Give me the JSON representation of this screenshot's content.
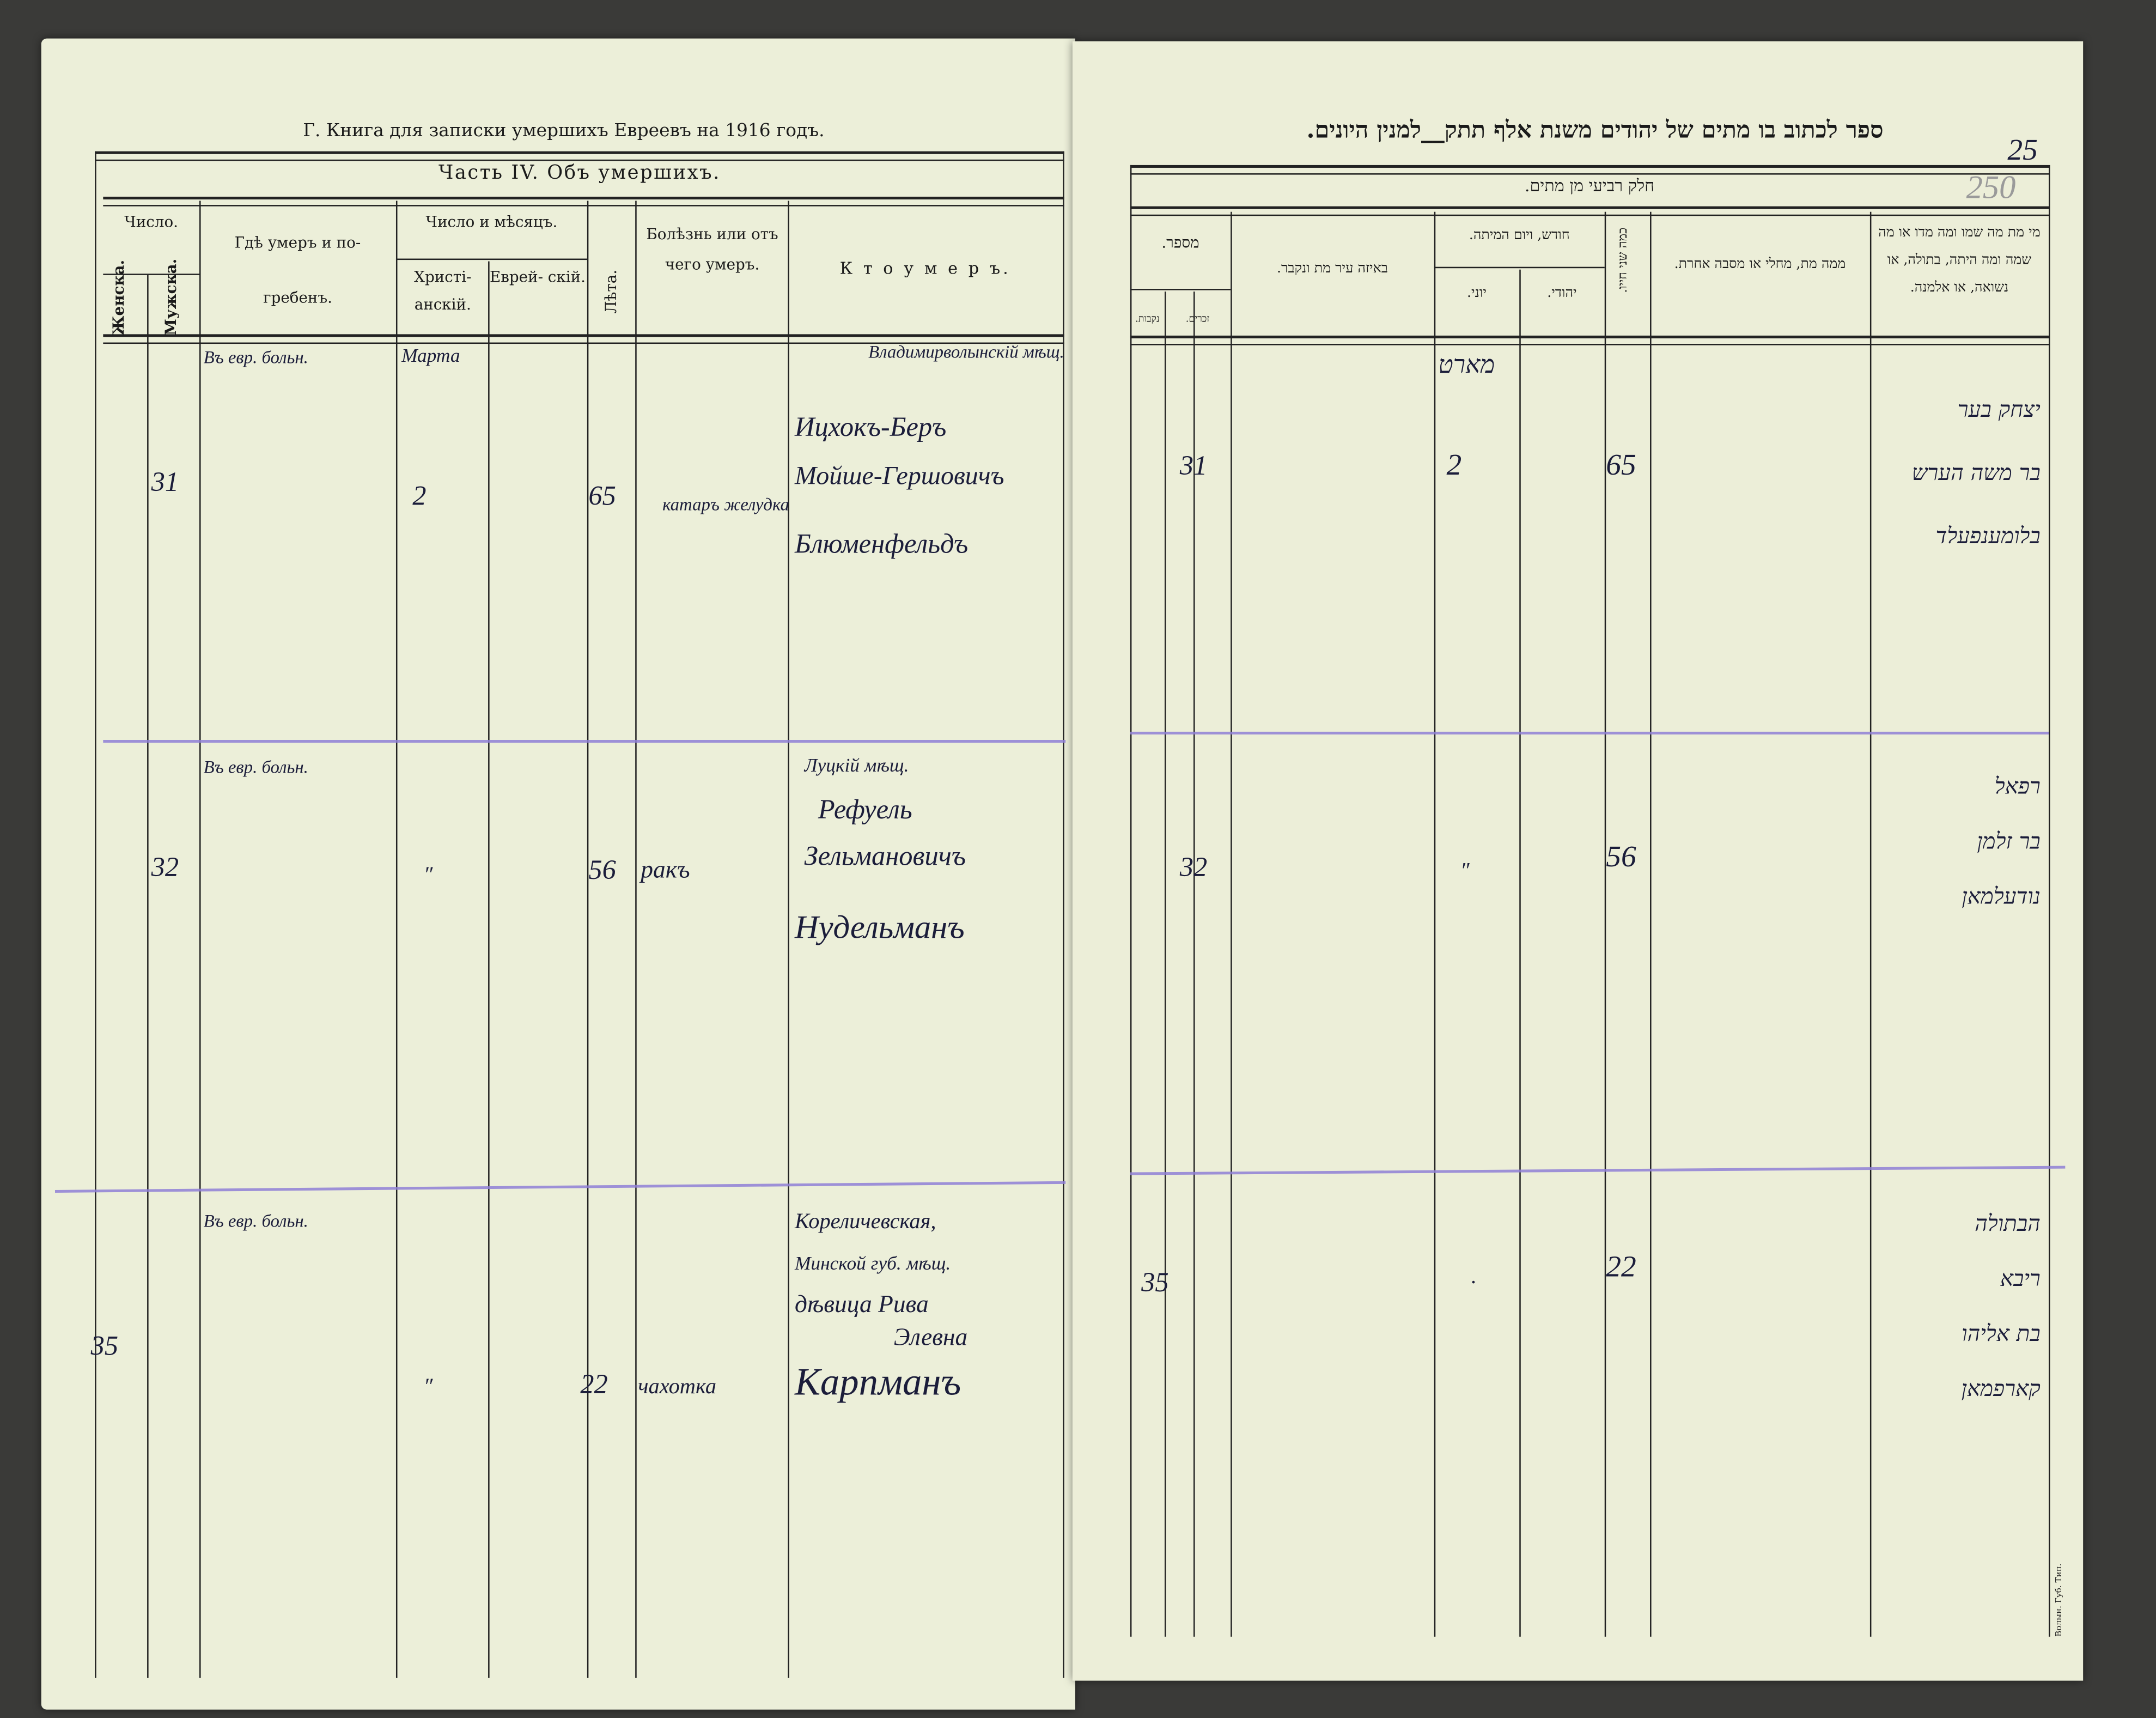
{
  "left_page": {
    "running_title": "Г. Книга для записки умершихъ Евреевъ на 1916 годъ.",
    "section_title": "Часть IV. Объ умершихъ.",
    "headers": {
      "number": "Число.",
      "female": "Женска.",
      "male": "Мужска.",
      "place": "Гдѣ умеръ и по-",
      "place2": "гребенъ.",
      "date": "Число и мѣсяцъ.",
      "christian": "Христі- анскій.",
      "jewish": "Еврей- скій.",
      "age": "Лѣта.",
      "disease": "Болѣзнь или отъ чего умеръ.",
      "who": "К т о  у м е р ъ."
    },
    "rows": [
      {
        "female": "",
        "male": "31",
        "place": "Въ евр. больн.",
        "month": "Марта",
        "day": "2",
        "jewish": "",
        "age": "65",
        "disease": "катаръ желудка",
        "who": [
          "Владимирволынскій мѣщ.",
          "Ицхокъ-Беръ",
          "Мойше-Гершовичъ",
          "Блюменфельдъ"
        ]
      },
      {
        "female": "",
        "male": "32",
        "place": "Въ евр. больн.",
        "month": "",
        "day": "″",
        "jewish": "",
        "age": "56",
        "disease": "ракъ",
        "who": [
          "Луцкій мѣщ.",
          "Рефуель",
          "Зельмановичъ",
          "Нудельманъ"
        ]
      },
      {
        "female": "35",
        "male": "",
        "place": "Въ евр. больн.",
        "month": "",
        "day": "″",
        "jewish": "",
        "age": "22",
        "disease": "чахотка",
        "who": [
          "Кореличевская,",
          "Минской губ. мѣщ.",
          "дѣвица Рива",
          "Элевна",
          "Карпманъ"
        ]
      }
    ]
  },
  "right_page": {
    "running_title": "ספר לכתוב בו מתים של יהודים משנת אלף תתק__למנין היונים.",
    "page_number": "25",
    "pencil_number": "250",
    "section_title": "חלק רביעי מן מתים.",
    "headers": {
      "count": "מספר.",
      "males": "זכרים.",
      "females": "נקבות.",
      "place": "באיזה עיר מת ונקבר.",
      "date": "חודש, ויום המיתה.",
      "greek": "יוני.",
      "hebrew": "יהודי.",
      "age": "כמה שני חייו.",
      "cause": "ממה מת, מחלי או מסבה אחרת.",
      "who": "מי מת מה שמו ומה מדו או מה שמה ומה היתה, בתולה, או נשואה, או אלמנה."
    },
    "rows": [
      {
        "males": "31",
        "females": "",
        "place": "",
        "greek": "מארט",
        "greek_day": "2",
        "hebrew": "",
        "age": "65",
        "cause": "",
        "who": [
          "יצחק בער",
          "בר משה הערש",
          "בלומענפעלד"
        ]
      },
      {
        "males": "32",
        "females": "",
        "place": "",
        "greek": "",
        "greek_day": "″",
        "hebrew": "",
        "age": "56",
        "cause": "",
        "who": [
          "רפאל",
          "בר זלמן",
          "נודעלמאן"
        ]
      },
      {
        "males": "",
        "females": "35",
        "place": "",
        "greek": "",
        "greek_day": ".",
        "hebrew": "",
        "age": "22",
        "cause": "",
        "who": [
          "הבתולה",
          "ריבא",
          "בת אליהו",
          "קארפמאן"
        ]
      }
    ],
    "printer_mark": "Волын. Губ. Тип."
  }
}
